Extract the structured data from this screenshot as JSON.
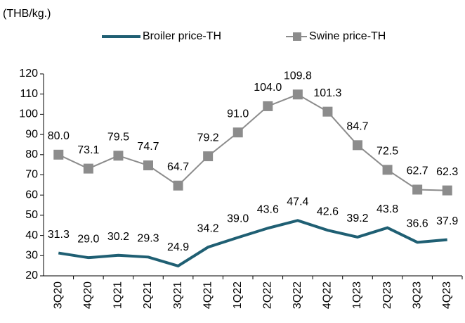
{
  "chart_data": {
    "type": "line",
    "y_label": "(THB/kg.)",
    "categories": [
      "3Q20",
      "4Q20",
      "1Q21",
      "2Q21",
      "3Q21",
      "4Q21",
      "1Q22",
      "2Q22",
      "3Q22",
      "4Q22",
      "1Q23",
      "2Q23",
      "3Q23",
      "4Q23"
    ],
    "series": [
      {
        "name": "Broiler price-TH",
        "color": "#1f5f73",
        "marker": "none",
        "values": [
          31.3,
          29.0,
          30.2,
          29.3,
          24.9,
          34.2,
          39.0,
          43.6,
          47.4,
          42.6,
          39.2,
          43.8,
          36.6,
          37.9
        ],
        "value_labels": [
          "31.3",
          "29.0",
          "30.2",
          "29.3",
          "24.9",
          "34.2",
          "39.0",
          "43.6",
          "47.4",
          "42.6",
          "39.2",
          "43.8",
          "36.6",
          "37.9"
        ]
      },
      {
        "name": "Swine price-TH",
        "color": "#8c8c8c",
        "marker": "square",
        "values": [
          80.0,
          73.1,
          79.5,
          74.7,
          64.7,
          79.2,
          91.0,
          104.0,
          109.8,
          101.3,
          84.7,
          72.5,
          62.7,
          62.3
        ],
        "value_labels": [
          "80.0",
          "73.1",
          "79.5",
          "74.7",
          "64.7",
          "79.2",
          "91.0",
          "104.0",
          "109.8",
          "101.3",
          "84.7",
          "72.5",
          "62.7",
          "62.3"
        ]
      }
    ],
    "ylim": [
      20,
      120
    ],
    "yticks": [
      20,
      30,
      40,
      50,
      60,
      70,
      80,
      90,
      100,
      110,
      120
    ],
    "legend": "top"
  }
}
